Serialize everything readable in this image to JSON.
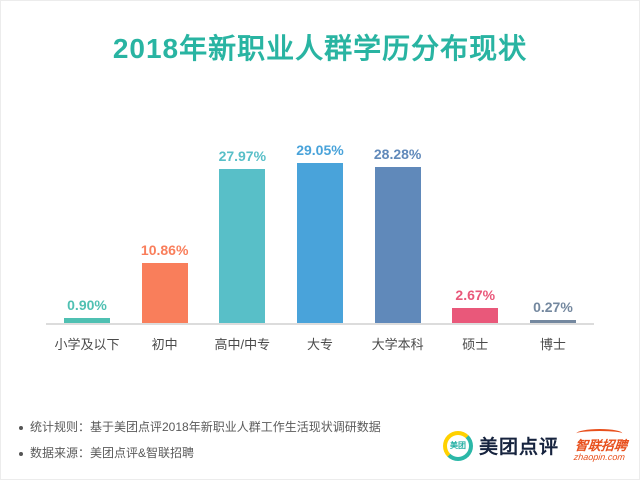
{
  "chart_data": {
    "type": "bar",
    "title": "2018年新职业人群学历分布现状",
    "categories": [
      "小学及以下",
      "初中",
      "高中/中专",
      "大专",
      "大学本科",
      "硕士",
      "博士"
    ],
    "values": [
      0.9,
      10.86,
      27.97,
      29.05,
      28.28,
      2.67,
      0.27
    ],
    "value_labels": [
      "0.90%",
      "10.86%",
      "27.97%",
      "29.05%",
      "28.28%",
      "2.67%",
      "0.27%"
    ],
    "bar_colors": [
      "#4fc0b2",
      "#f97e5b",
      "#58bfc8",
      "#49a3da",
      "#6089ba",
      "#e9587a",
      "#74889f"
    ],
    "xlabel": "",
    "ylabel": "",
    "ylim": [
      0,
      32
    ],
    "grid": false,
    "legend": "none"
  },
  "footnotes": [
    "统计规则：基于美团点评2018年新职业人群工作生活现状调研数据",
    "数据来源：美团点评&智联招聘"
  ],
  "logos": {
    "meituan_icon_text": "美团",
    "meituan_text": "美团点评",
    "zhaopin_line1": "智联招聘",
    "zhaopin_line2": "zhaopin.com"
  },
  "colors": {
    "title": "#29b4a2",
    "axis": "#dcdcdc",
    "category_text": "#4a4a4a",
    "footnote_text": "#5a5a5a",
    "meituan_text": "#16233e",
    "zhaopin": "#e8501d"
  }
}
